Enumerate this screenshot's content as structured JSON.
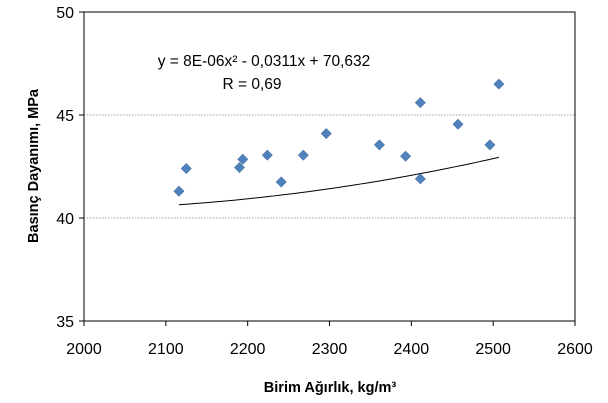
{
  "chart_data": {
    "type": "scatter",
    "xlabel": "Birim Ağırlık, kg/m³",
    "ylabel": "Basınç Dayanımı, MPa",
    "xlim": [
      2000,
      2600
    ],
    "ylim": [
      35,
      50
    ],
    "xticks": [
      2000,
      2100,
      2200,
      2300,
      2400,
      2500,
      2600
    ],
    "yticks": [
      35,
      40,
      45,
      50
    ],
    "grid": true,
    "marker_color": "#4F81BD",
    "trendline_color": "#000000",
    "points": [
      {
        "x": 2116,
        "y": 41.3
      },
      {
        "x": 2125,
        "y": 42.4
      },
      {
        "x": 2190,
        "y": 42.45
      },
      {
        "x": 2194,
        "y": 42.85
      },
      {
        "x": 2224,
        "y": 43.05
      },
      {
        "x": 2241,
        "y": 41.75
      },
      {
        "x": 2268,
        "y": 43.05
      },
      {
        "x": 2296,
        "y": 44.1
      },
      {
        "x": 2361,
        "y": 43.55
      },
      {
        "x": 2393,
        "y": 43.0
      },
      {
        "x": 2411,
        "y": 41.9
      },
      {
        "x": 2411,
        "y": 45.6
      },
      {
        "x": 2457,
        "y": 44.55
      },
      {
        "x": 2496,
        "y": 43.55
      },
      {
        "x": 2507,
        "y": 46.5
      }
    ],
    "trendline": {
      "type": "polynomial",
      "coefficients": [
        8e-06,
        -0.0311,
        70.632
      ],
      "x_range": [
        2116,
        2507
      ]
    },
    "annotations": {
      "equation": "y = 8E-06x² - 0,0311x + 70,632",
      "r_value": "R = 0,69"
    }
  }
}
